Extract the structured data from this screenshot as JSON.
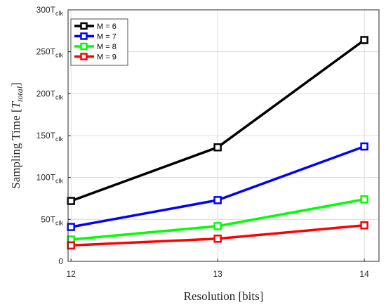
{
  "chart_data": {
    "type": "line",
    "x": [
      12,
      13,
      14
    ],
    "xticks": [
      "12",
      "13",
      "14"
    ],
    "xlim": [
      11.98,
      14.1
    ],
    "ylim": [
      0,
      300
    ],
    "yticks": [
      {
        "value": 0,
        "main": "0",
        "sub": ""
      },
      {
        "value": 50,
        "main": "50T",
        "sub": "clk"
      },
      {
        "value": 100,
        "main": "100T",
        "sub": "clk"
      },
      {
        "value": 150,
        "main": "150T",
        "sub": "clk"
      },
      {
        "value": 200,
        "main": "200T",
        "sub": "clk"
      },
      {
        "value": 250,
        "main": "250T",
        "sub": "clk"
      },
      {
        "value": 300,
        "main": "300T",
        "sub": "clk"
      }
    ],
    "xlabel": "Resolution [bits]",
    "ylabel_main": "Sampling Time [",
    "ylabel_var": "T",
    "ylabel_sub": "total",
    "ylabel_end": "]",
    "grid": true,
    "legend_position": "top-left",
    "marker": "square",
    "series": [
      {
        "name": "M = 6",
        "color": "#000000",
        "values": [
          72,
          136,
          264
        ]
      },
      {
        "name": "M = 7",
        "color": "#0000ff",
        "values": [
          41,
          73,
          137
        ]
      },
      {
        "name": "M = 8",
        "color": "#00ff00",
        "values": [
          26,
          42,
          74
        ]
      },
      {
        "name": "M = 9",
        "color": "#ff0000",
        "values": [
          19,
          27,
          43
        ]
      }
    ]
  }
}
